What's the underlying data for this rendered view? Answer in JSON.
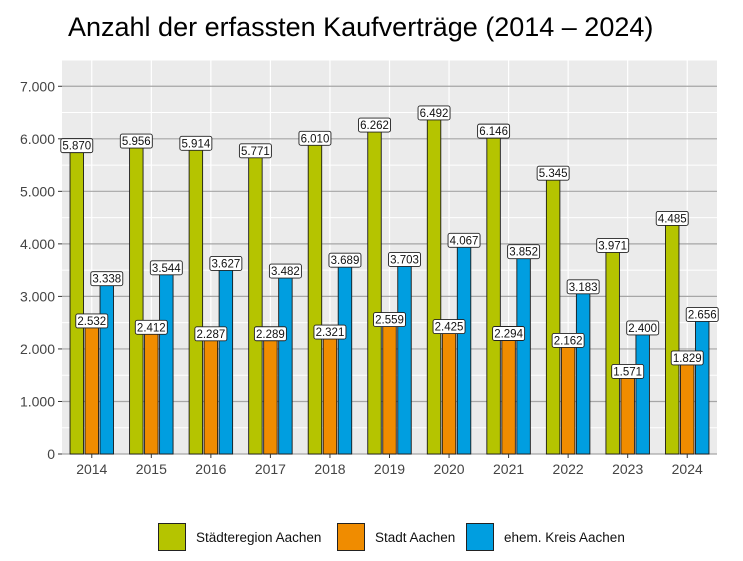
{
  "chart_data": {
    "type": "bar",
    "title": "Anzahl der erfassten Kaufverträge (2014 – 2024)",
    "xlabel": "",
    "ylabel": "",
    "categories": [
      "2014",
      "2015",
      "2016",
      "2017",
      "2018",
      "2019",
      "2020",
      "2021",
      "2022",
      "2023",
      "2024"
    ],
    "ylim": [
      0,
      7500
    ],
    "yticks": [
      0,
      1000,
      2000,
      3000,
      4000,
      5000,
      6000,
      7000
    ],
    "ytick_labels": [
      "0",
      "1.000",
      "2.000",
      "3.000",
      "4.000",
      "5.000",
      "6.000",
      "7.000"
    ],
    "grid": true,
    "legend_position": "bottom",
    "series": [
      {
        "name": "Städteregion Aachen",
        "color": "#b5c400",
        "values": [
          5870,
          5956,
          5914,
          5771,
          6010,
          6262,
          6492,
          6146,
          5345,
          3971,
          4485
        ],
        "labels": [
          "5.870",
          "5.956",
          "5.914",
          "5.771",
          "6.010",
          "6.262",
          "6.492",
          "6.146",
          "5.345",
          "3.971",
          "4.485"
        ]
      },
      {
        "name": "Stadt Aachen",
        "color": "#f08c00",
        "values": [
          2532,
          2412,
          2287,
          2289,
          2321,
          2559,
          2425,
          2294,
          2162,
          1571,
          1829
        ],
        "labels": [
          "2.532",
          "2.412",
          "2.287",
          "2.289",
          "2.321",
          "2.559",
          "2.425",
          "2.294",
          "2.162",
          "1.571",
          "1.829"
        ]
      },
      {
        "name": "ehem. Kreis Aachen",
        "color": "#009ee0",
        "values": [
          3338,
          3544,
          3627,
          3482,
          3689,
          3703,
          4067,
          3852,
          3183,
          2400,
          2656
        ],
        "labels": [
          "3.338",
          "3.544",
          "3.627",
          "3.482",
          "3.689",
          "3.703",
          "4.067",
          "3.852",
          "3.183",
          "2.400",
          "2.656"
        ]
      }
    ]
  },
  "colors": {
    "panel_background": "#ebebeb",
    "grid_major": "#a6a6a6",
    "grid_minor": "#ffffff"
  }
}
